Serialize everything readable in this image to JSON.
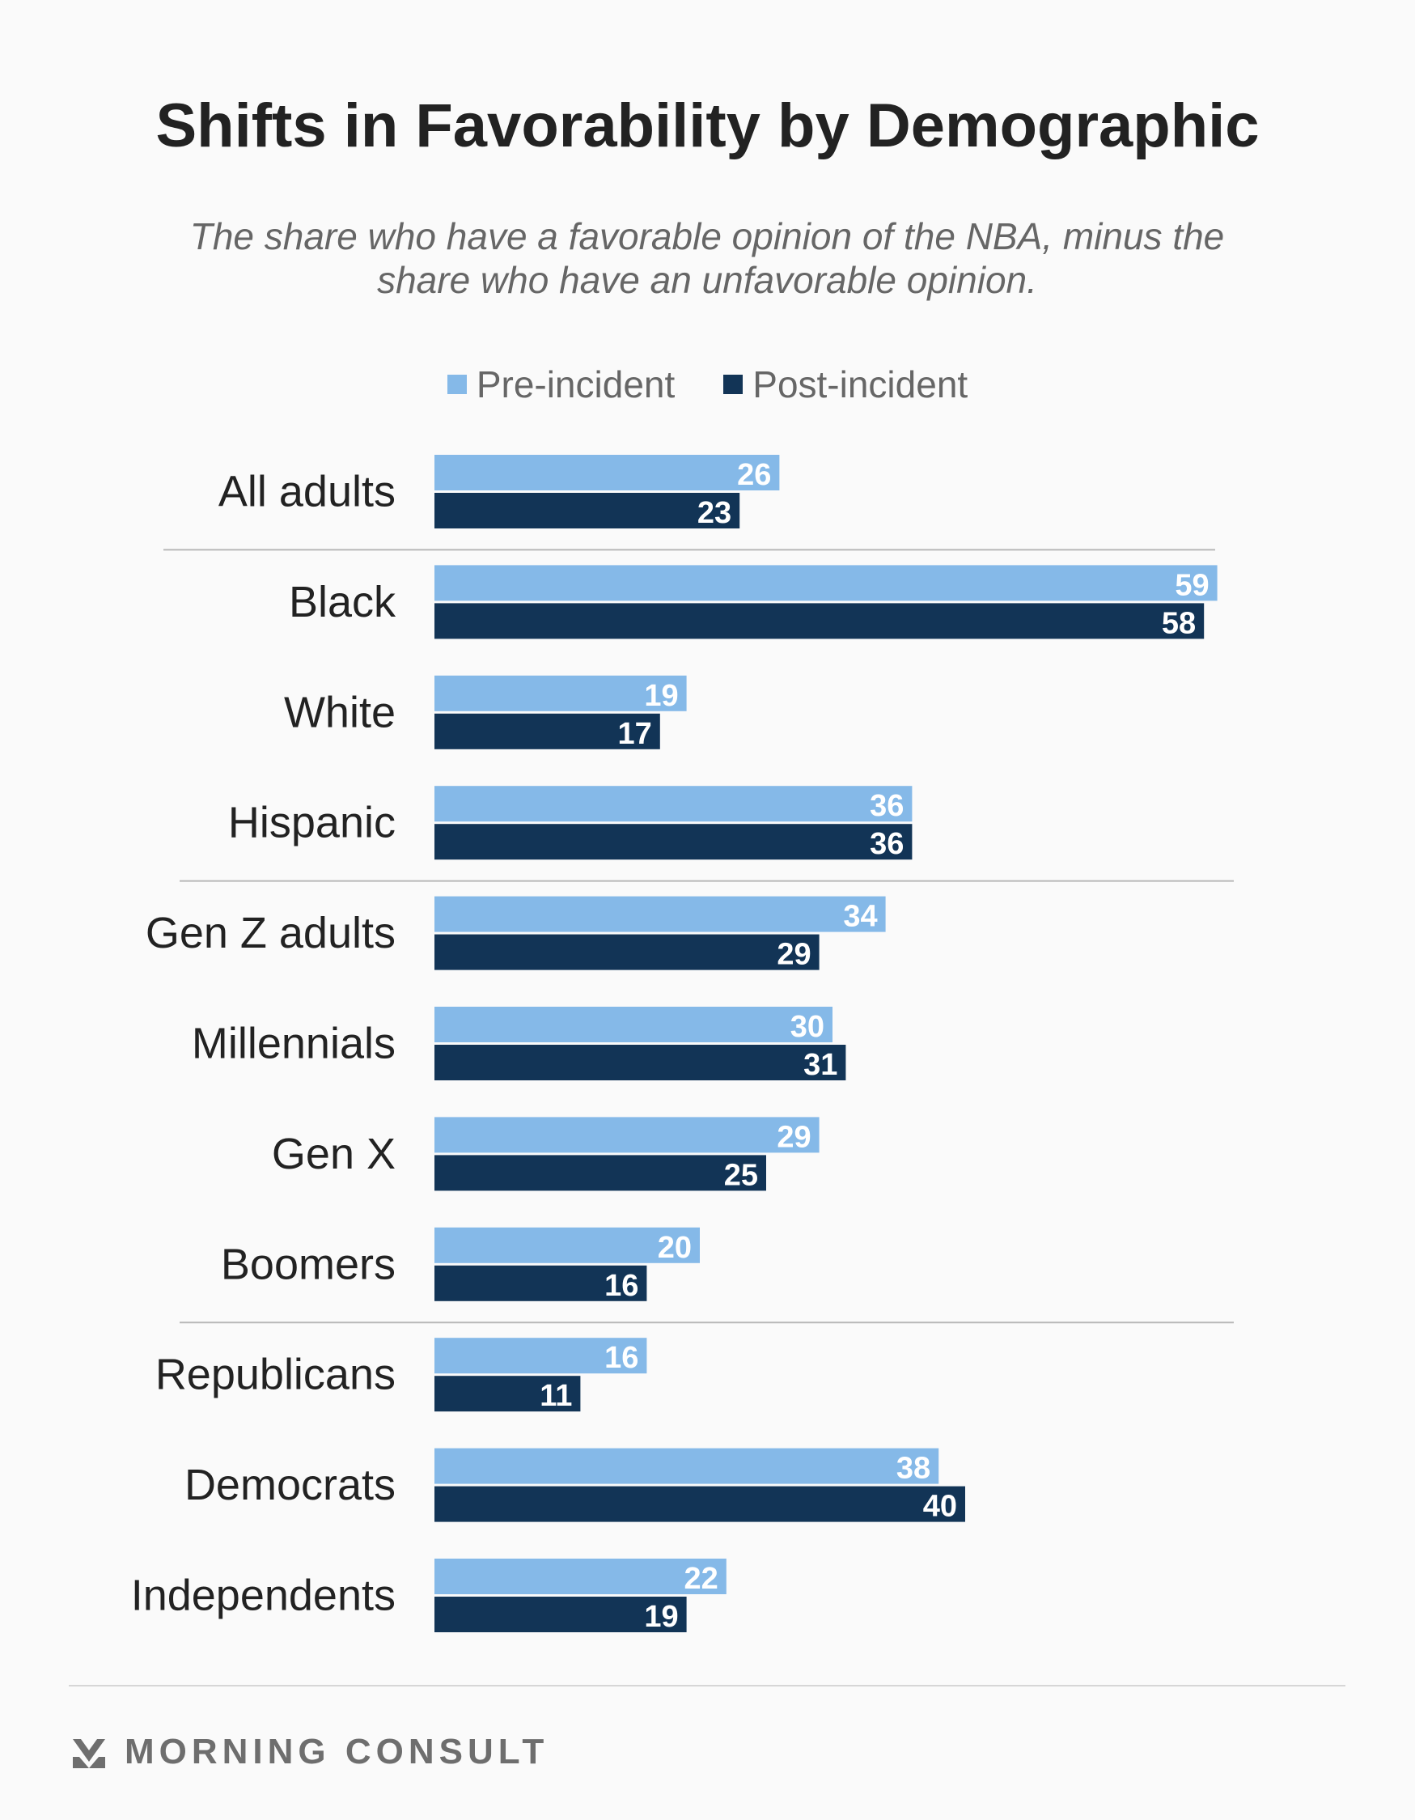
{
  "title": "Shifts in Favorability by Demographic",
  "subtitle": "The share who have a favorable opinion of the NBA, minus the share who have an unfavorable opinion.",
  "legend": [
    {
      "label": "Pre-incident",
      "color": "#85b9e8"
    },
    {
      "label": "Post-incident",
      "color": "#123456"
    }
  ],
  "brand": {
    "name": "MORNING CONSULT",
    "icon": "morning-consult-logo-icon"
  },
  "chart_data": {
    "type": "bar",
    "orientation": "horizontal",
    "title": "Shifts in Favorability by Demographic",
    "subtitle": "The share who have a favorable opinion of the NBA, minus the share who have an unfavorable opinion.",
    "categories": [
      "All adults",
      "Black",
      "White",
      "Hispanic",
      "Gen Z adults",
      "Millennials",
      "Gen X",
      "Boomers",
      "Republicans",
      "Democrats",
      "Independents"
    ],
    "series": [
      {
        "name": "Pre-incident",
        "color": "#85b9e8",
        "values": [
          26,
          59,
          19,
          36,
          34,
          30,
          29,
          20,
          16,
          38,
          22
        ]
      },
      {
        "name": "Post-incident",
        "color": "#123456",
        "values": [
          23,
          58,
          17,
          36,
          29,
          31,
          25,
          16,
          11,
          40,
          19
        ]
      }
    ],
    "group_separators_after": [
      "All adults",
      "Hispanic",
      "Boomers"
    ],
    "xlim": [
      0,
      60
    ],
    "data_labels": true,
    "legend_position": "top-center",
    "grid": false
  }
}
